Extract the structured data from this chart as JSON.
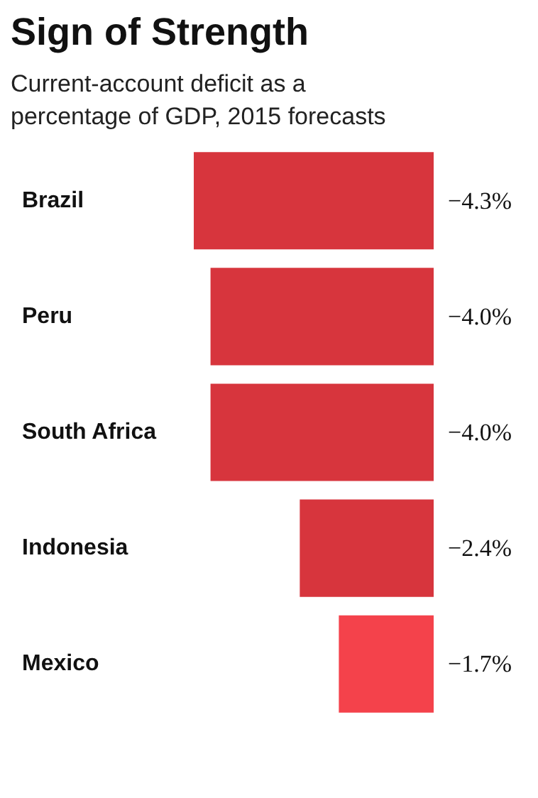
{
  "chart_data": {
    "type": "bar",
    "orientation": "horizontal",
    "title": "Sign of Strength",
    "subtitle": "Current-account deficit as a\npercentage of GDP, 2015 forecasts",
    "categories": [
      "Brazil",
      "Peru",
      "South Africa",
      "Indonesia",
      "Mexico"
    ],
    "values": [
      -4.3,
      -4.0,
      -4.0,
      -2.4,
      -1.7
    ],
    "colors": [
      "#d7353d",
      "#d7353d",
      "#d7353d",
      "#d7353d",
      "#f4424b"
    ],
    "value_labels": [
      "−4.3%",
      "−4.0%",
      "−4.0%",
      "−2.4%",
      "−1.7%"
    ]
  }
}
